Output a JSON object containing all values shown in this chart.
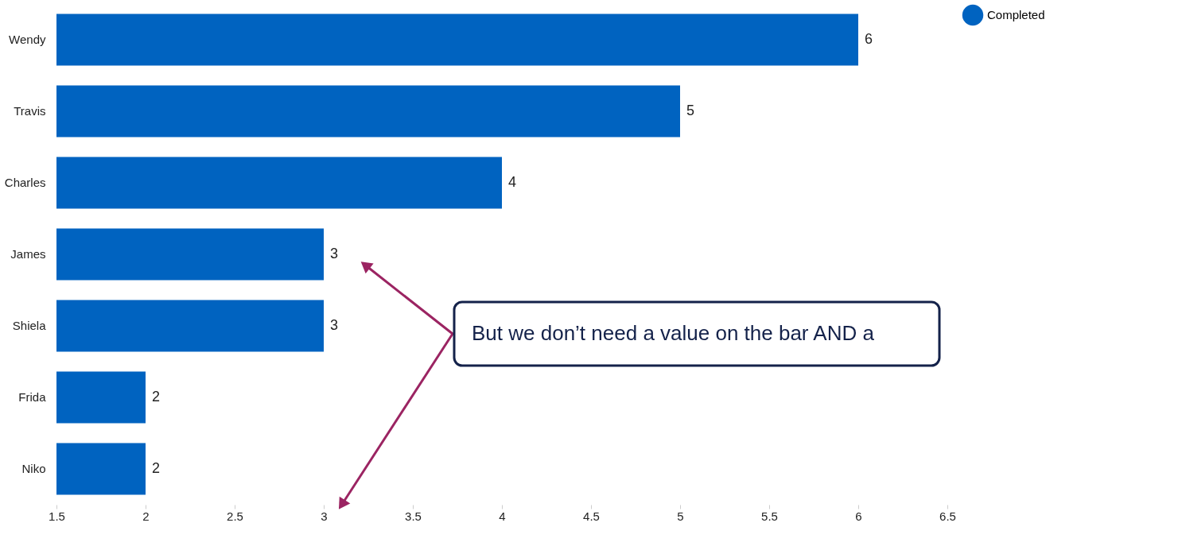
{
  "chart_data": {
    "type": "bar",
    "orientation": "horizontal",
    "categories": [
      "Wendy",
      "Travis",
      "Charles",
      "James",
      "Shiela",
      "Frida",
      "Niko"
    ],
    "series": [
      {
        "name": "Completed",
        "color": "#0063c0",
        "values": [
          6,
          5,
          4,
          3,
          3,
          2,
          2
        ]
      }
    ],
    "xlim": [
      1.5,
      6.5
    ],
    "xticks": [
      1.5,
      2,
      2.5,
      3,
      3.5,
      4,
      4.5,
      5,
      5.5,
      6,
      6.5
    ],
    "data_labels": true,
    "grid": false,
    "legend": "top right",
    "annotations": [
      "But we don’t need a value on the bar AND a"
    ]
  }
}
